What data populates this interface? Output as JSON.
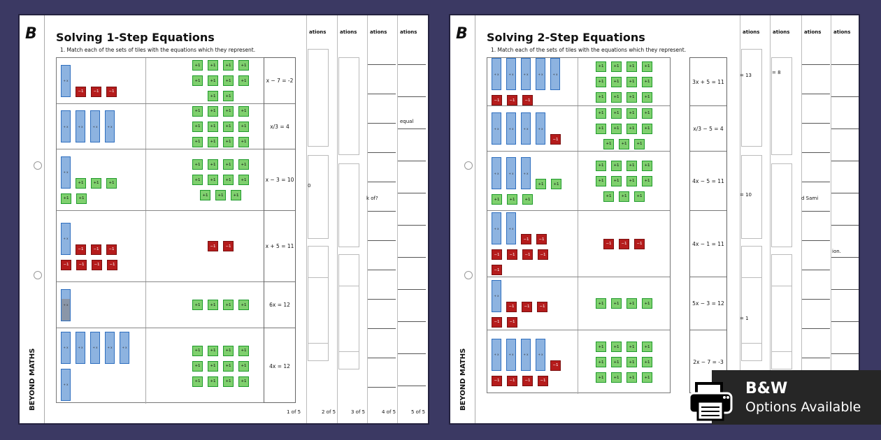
{
  "sheets": [
    {
      "title": "Solving 1-Step Equations",
      "instruction": "1.   Match each of the sets of tiles with the equations which they represent.",
      "rows": [
        {
          "left": {
            "x": 1,
            "neg": 3,
            "pos": 0
          },
          "right": {
            "pos": 10,
            "neg": 0
          },
          "equation": "x − 7 = -2"
        },
        {
          "left": {
            "x": 4,
            "neg": 0,
            "pos": 0
          },
          "right": {
            "pos": 12,
            "neg": 0
          },
          "equation": "x/3 = 4"
        },
        {
          "left": {
            "x": 1,
            "neg": 0,
            "pos": 5
          },
          "right": {
            "pos": 11,
            "neg": 0
          },
          "equation": "x − 3 = 10"
        },
        {
          "left": {
            "x": 1,
            "neg": 7,
            "pos": 0
          },
          "right": {
            "pos": 0,
            "neg": 2
          },
          "equation": "x + 5 = 11"
        },
        {
          "left": {
            "x": 1,
            "neg": 0,
            "pos": 0
          },
          "right": {
            "pos": 4,
            "neg": 0
          },
          "equation": "6x = 12"
        },
        {
          "left": {
            "x": 6,
            "neg": 0,
            "pos": 0
          },
          "right": {
            "pos": 12,
            "neg": 0
          },
          "equation": "4x = 12"
        }
      ],
      "page_label": "1 of 5",
      "behind_pages": [
        {
          "title": "ations",
          "label": "2 of 5"
        },
        {
          "title": "ations",
          "label": "3 of 5"
        },
        {
          "title": "ations",
          "label": "4 of 5"
        },
        {
          "title": "ations",
          "label": "5 of 5"
        }
      ],
      "snippets": [
        "0",
        "k of?",
        "equal"
      ]
    },
    {
      "title": "Solving 2-Step Equations",
      "instruction": "1.   Match each of the sets of tiles with the equations which they represent.",
      "rows": [
        {
          "left": {
            "x": 5,
            "neg": 3,
            "pos": 0
          },
          "right": {
            "pos": 12,
            "neg": 0
          },
          "equation": "3x + 5 = 11"
        },
        {
          "left": {
            "x": 4,
            "neg": 1,
            "pos": 0
          },
          "right": {
            "pos": 11,
            "neg": 0
          },
          "equation": "x/3 − 5 = 4"
        },
        {
          "left": {
            "x": 3,
            "neg": 0,
            "pos": 5
          },
          "right": {
            "pos": 11,
            "neg": 0
          },
          "equation": "4x − 5 = 11"
        },
        {
          "left": {
            "x": 2,
            "neg": 7,
            "pos": 0
          },
          "right": {
            "pos": 0,
            "neg": 3
          },
          "equation": "4x − 1 = 11"
        },
        {
          "left": {
            "x": 1,
            "neg": 5,
            "pos": 0
          },
          "right": {
            "pos": 4,
            "neg": 0
          },
          "equation": "5x − 3 = 12"
        },
        {
          "left": {
            "x": 4,
            "neg": 5,
            "pos": 0
          },
          "right": {
            "pos": 12,
            "neg": 0
          },
          "equation": "2x − 7 = -3"
        }
      ],
      "behind_pages": [
        {
          "title": "ations"
        },
        {
          "title": "ations"
        },
        {
          "title": "ations"
        },
        {
          "title": "ations"
        }
      ],
      "snippets": [
        "= 13",
        "= 8",
        "= 10",
        "= 1",
        "d Sami",
        "ion."
      ]
    }
  ],
  "tile_labels": {
    "x": "+ x",
    "pos": "+1",
    "neg": "−1"
  },
  "brand": "BEYOND MATHS",
  "badge": {
    "line1": "B&W",
    "line2": "Options Available"
  },
  "colors": {
    "background": "#3b3963",
    "x_tile": "#8db3e0",
    "pos_tile": "#7fd06e",
    "neg_tile": "#b51c1c"
  }
}
